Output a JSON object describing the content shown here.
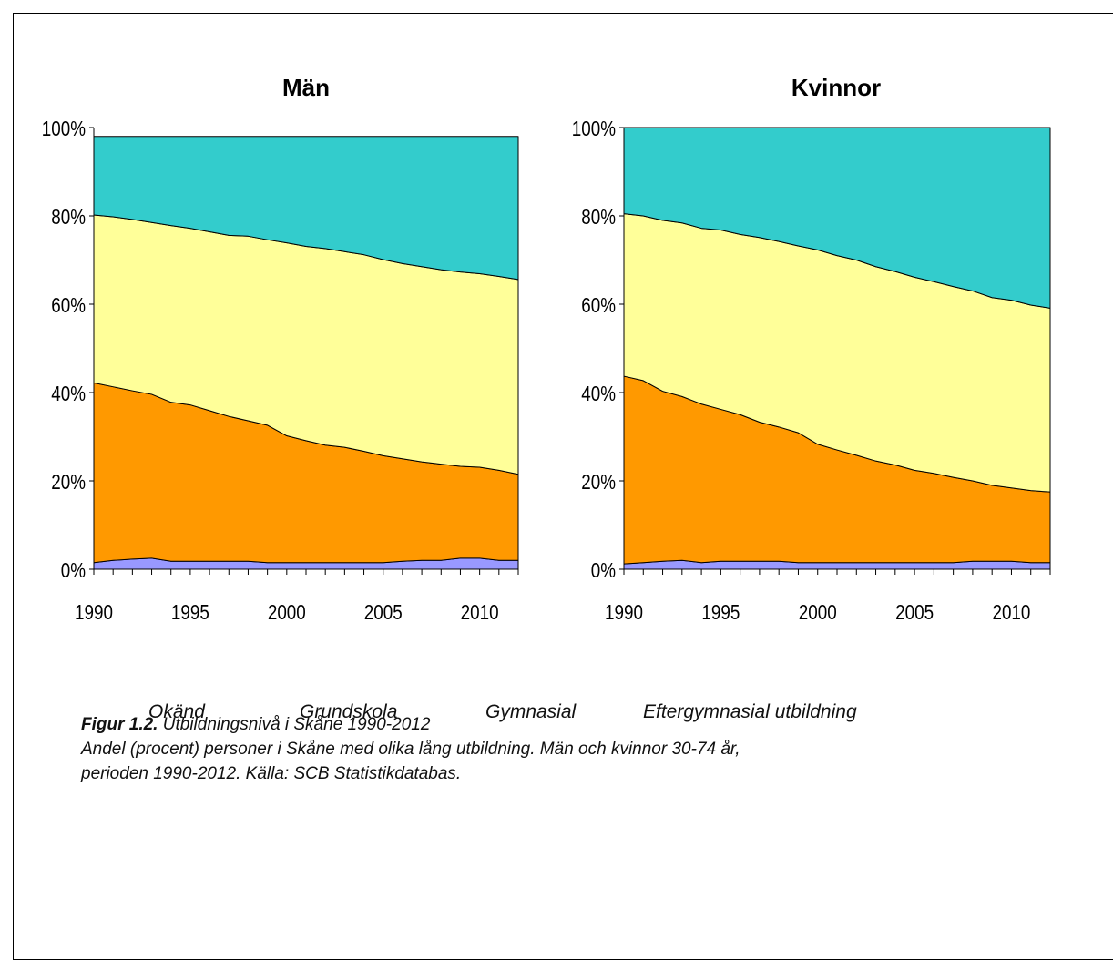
{
  "legend": [
    "Okänd",
    "Grundskola",
    "Gymnasial",
    "Eftergymnasial utbildning"
  ],
  "caption": {
    "label": "Figur 1.2.",
    "title": "Utbildningsnivå i Skåne 1990-2012",
    "line2": "Andel (procent) personer i Skåne med olika lång utbildning. Män och kvinnor 30-74 år,",
    "line3": "perioden 1990-2012. Källa: SCB Statistikdatabas."
  },
  "colors": {
    "Okänd": "#9999ff",
    "Grundskola": "#ff9900",
    "Gymnasial": "#ffff99",
    "Eftergymnasial utbildning": "#33cccc"
  },
  "chart_data": [
    {
      "type": "area",
      "stacked": true,
      "title": "Män",
      "x": [
        1990,
        1991,
        1992,
        1993,
        1994,
        1995,
        1996,
        1997,
        1998,
        1999,
        2000,
        2001,
        2002,
        2003,
        2004,
        2005,
        2006,
        2007,
        2008,
        2009,
        2010,
        2011,
        2012
      ],
      "x_ticks": [
        1990,
        1995,
        2000,
        2005,
        2010
      ],
      "y_ticks": [
        "0%",
        "20%",
        "40%",
        "60%",
        "80%",
        "100%"
      ],
      "ylim": [
        0,
        100
      ],
      "series": [
        {
          "name": "Okänd",
          "values": [
            1.5,
            2,
            2.3,
            2.5,
            1.8,
            1.8,
            1.8,
            1.8,
            1.8,
            1.5,
            1.5,
            1.5,
            1.5,
            1.5,
            1.5,
            1.5,
            1.8,
            2,
            2,
            2.5,
            2.5,
            2,
            2
          ]
        },
        {
          "name": "Grundskola",
          "values": [
            40.7,
            39.3,
            38.1,
            37.1,
            36,
            35.4,
            34.1,
            32.8,
            31.8,
            31.1,
            28.7,
            27.6,
            26.6,
            26.1,
            25.2,
            24.2,
            23.2,
            22.3,
            21.8,
            20.8,
            20.6,
            20.4,
            19.5
          ]
        },
        {
          "name": "Gymnasial",
          "values": [
            38,
            38.5,
            38.8,
            38.9,
            40,
            40,
            40.5,
            41,
            41.8,
            42,
            43.7,
            44,
            44.5,
            44.3,
            44.5,
            44.4,
            44.2,
            44.2,
            44,
            44,
            43.8,
            43.9,
            44.1
          ]
        },
        {
          "name": "Eftergymnasial utbildning",
          "values": [
            17.8,
            18.2,
            18.8,
            19.5,
            20.2,
            20.8,
            21.6,
            22.4,
            22.6,
            23.4,
            24.1,
            24.9,
            25.4,
            26.1,
            26.8,
            27.9,
            28.8,
            29.5,
            30.2,
            30.7,
            31.1,
            31.7,
            32.4
          ]
        }
      ]
    },
    {
      "type": "area",
      "stacked": true,
      "title": "Kvinnor",
      "x": [
        1990,
        1991,
        1992,
        1993,
        1994,
        1995,
        1996,
        1997,
        1998,
        1999,
        2000,
        2001,
        2002,
        2003,
        2004,
        2005,
        2006,
        2007,
        2008,
        2009,
        2010,
        2011,
        2012
      ],
      "x_ticks": [
        1990,
        1995,
        2000,
        2005,
        2010
      ],
      "y_ticks": [
        "0%",
        "20%",
        "40%",
        "60%",
        "80%",
        "100%"
      ],
      "ylim": [
        0,
        100
      ],
      "series": [
        {
          "name": "Okänd",
          "values": [
            1.2,
            1.5,
            1.8,
            2,
            1.5,
            1.8,
            1.8,
            1.8,
            1.8,
            1.5,
            1.5,
            1.5,
            1.5,
            1.5,
            1.5,
            1.5,
            1.5,
            1.5,
            1.8,
            1.8,
            1.8,
            1.5,
            1.5
          ]
        },
        {
          "name": "Grundskola",
          "values": [
            42.5,
            41.2,
            38.5,
            37.1,
            35.9,
            34.4,
            33.2,
            31.5,
            30.4,
            29.4,
            26.8,
            25.5,
            24.3,
            23,
            22.1,
            20.9,
            20.2,
            19.3,
            18.2,
            17.2,
            16.6,
            16.3,
            16
          ]
        },
        {
          "name": "Gymnasial",
          "values": [
            36.8,
            37.3,
            38.7,
            39.3,
            39.8,
            40.6,
            40.8,
            41.8,
            42,
            42.3,
            44,
            44,
            44.2,
            44,
            43.8,
            43.7,
            43.4,
            43.2,
            43,
            42.5,
            42.5,
            42,
            41.6
          ]
        },
        {
          "name": "Eftergymnasial utbildning",
          "values": [
            19.5,
            20,
            21,
            21.6,
            22.8,
            23.2,
            24.2,
            24.9,
            25.8,
            26.8,
            27.7,
            29,
            30,
            31.5,
            32.6,
            33.9,
            34.9,
            36,
            37,
            38.5,
            39.1,
            40.2,
            40.9
          ]
        }
      ]
    }
  ]
}
